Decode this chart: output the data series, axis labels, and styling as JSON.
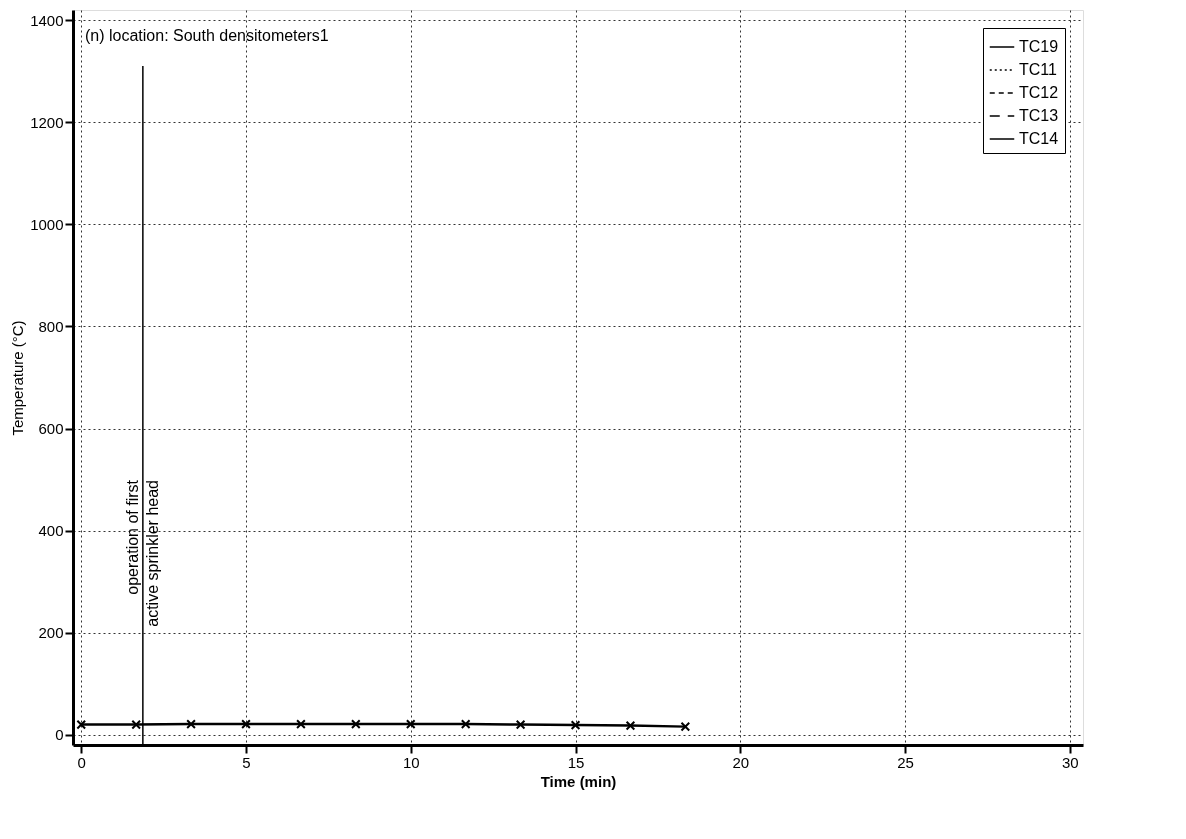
{
  "chart_data": {
    "type": "line",
    "title": "(n) location: South densitometers1",
    "xlabel": "Time (min)",
    "ylabel": "Temperature (°C)",
    "x": [
      0,
      1.667,
      3.333,
      5,
      6.667,
      8.333,
      10,
      11.667,
      13.333,
      15,
      16.667,
      18.333
    ],
    "series": [
      {
        "name": "TC19",
        "color": "#000000",
        "line_style": "solid",
        "values": [
          null,
          null,
          null,
          null,
          null,
          null,
          null,
          null,
          null,
          null,
          null,
          null
        ]
      },
      {
        "name": "TC11",
        "color": "#000000",
        "line_style": "dotted",
        "values": [
          null,
          null,
          null,
          null,
          null,
          null,
          null,
          null,
          null,
          null,
          null,
          null
        ]
      },
      {
        "name": "TC12",
        "color": "#000000",
        "line_style": "dashed",
        "values": [
          null,
          null,
          null,
          null,
          null,
          null,
          null,
          null,
          null,
          null,
          null,
          null
        ]
      },
      {
        "name": "TC13",
        "color": "#000000",
        "line_style": "longdash",
        "values": [
          null,
          null,
          null,
          null,
          null,
          null,
          null,
          null,
          null,
          null,
          null,
          null
        ]
      },
      {
        "name": "TC14",
        "color": "#000000",
        "line_style": "solid",
        "marker": "cross",
        "values": [
          20,
          20,
          21,
          21,
          21,
          21,
          21,
          21,
          20,
          19,
          18,
          16
        ]
      }
    ],
    "xlim": [
      -0.25,
      30.4
    ],
    "ylim": [
      -20,
      1420
    ],
    "xticks": [
      0,
      5,
      10,
      15,
      20,
      25,
      30
    ],
    "yticks": [
      0,
      200,
      400,
      600,
      800,
      {
        "value": 1000,
        "label": "1000"
      },
      {
        "value": 1200,
        "label": "1200"
      },
      {
        "value": 1400,
        "label": "1400"
      }
    ],
    "ref_lines": [
      {
        "axis": "x",
        "value": 1.87,
        "label": "operation of first\nactive sprinkler head",
        "color": "#000000"
      }
    ],
    "grid": true,
    "legend": "top right"
  }
}
